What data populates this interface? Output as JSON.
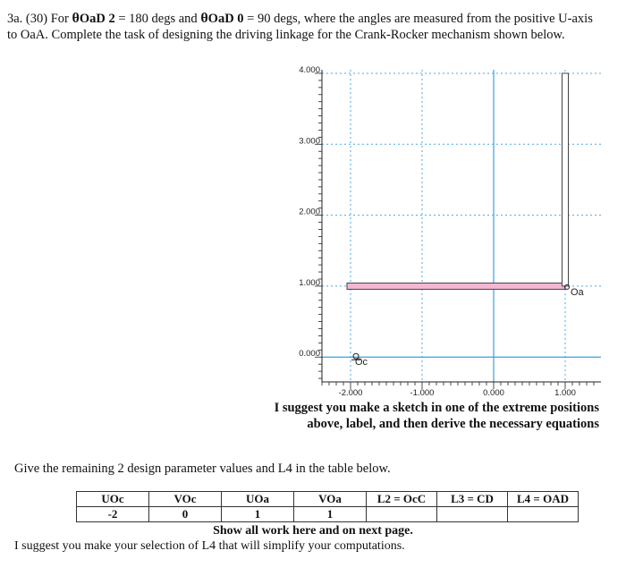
{
  "question": {
    "lead": "3a. (30) For ",
    "theta1_sym": "θ",
    "theta1_sub": "OaD",
    "theta1_idx": " 2",
    "theta1_val": " = 180 degs and ",
    "theta2_sym": "θ",
    "theta2_sub": "OaD",
    "theta2_idx": " 0",
    "theta2_val": " = 90 degs, where the angles are measured from the positive U-axis",
    "line2": "to OaA. Complete the task of designing the driving linkage for the Crank-Rocker mechanism shown below."
  },
  "chart_data": {
    "type": "diagram",
    "xlim": [
      -2.4,
      1.5
    ],
    "ylim": [
      -0.35,
      4.05
    ],
    "x_ticks": [
      {
        "v": -2.0,
        "label": "-2.000"
      },
      {
        "v": -1.0,
        "label": "-1.000"
      },
      {
        "v": 0.0,
        "label": "0.000"
      },
      {
        "v": 1.0,
        "label": "1.000"
      }
    ],
    "y_ticks": [
      {
        "v": 0.0,
        "label": "0.000"
      },
      {
        "v": 1.0,
        "label": "1.000"
      },
      {
        "v": 2.0,
        "label": "2.000"
      },
      {
        "v": 3.0,
        "label": "3.000"
      },
      {
        "v": 4.0,
        "label": "4.000"
      }
    ],
    "points": [
      {
        "name": "Oc",
        "x": -2.0,
        "y": 0.0,
        "label": "Oc"
      },
      {
        "name": "Oa",
        "x": 1.0,
        "y": 1.0,
        "label": "Oa"
      }
    ],
    "links": [
      {
        "name": "horizontal-link",
        "x1": -2.05,
        "y1": 1.0,
        "x2": 1.0,
        "y2": 1.0,
        "color": "#f4b6d2"
      },
      {
        "name": "vertical-link",
        "x1": 1.0,
        "y1": 1.0,
        "x2": 1.0,
        "y2": 4.0,
        "color": "#ffffff"
      }
    ],
    "colors": {
      "axis": "#3aa0e0",
      "grid": "#4aa8e8",
      "link_stroke": "#444"
    }
  },
  "suggestion": {
    "line1": "I suggest you make a sketch in one of the extreme positions",
    "line2": "above, label, and then derive the necessary equations"
  },
  "give_text": "Give the remaining 2 design parameter values and L4 in the table below.",
  "table": {
    "headers": [
      "UOc",
      "VOc",
      "UOa",
      "VOa",
      "L2 = OcC",
      "L3 = CD",
      "L4 = OAD"
    ],
    "values": [
      "-2",
      "0",
      "1",
      "1",
      "",
      "",
      ""
    ]
  },
  "show_work": "Show all work here and on next page.",
  "selection_note": "I suggest you make your selection of L4 that will simplify your computations."
}
